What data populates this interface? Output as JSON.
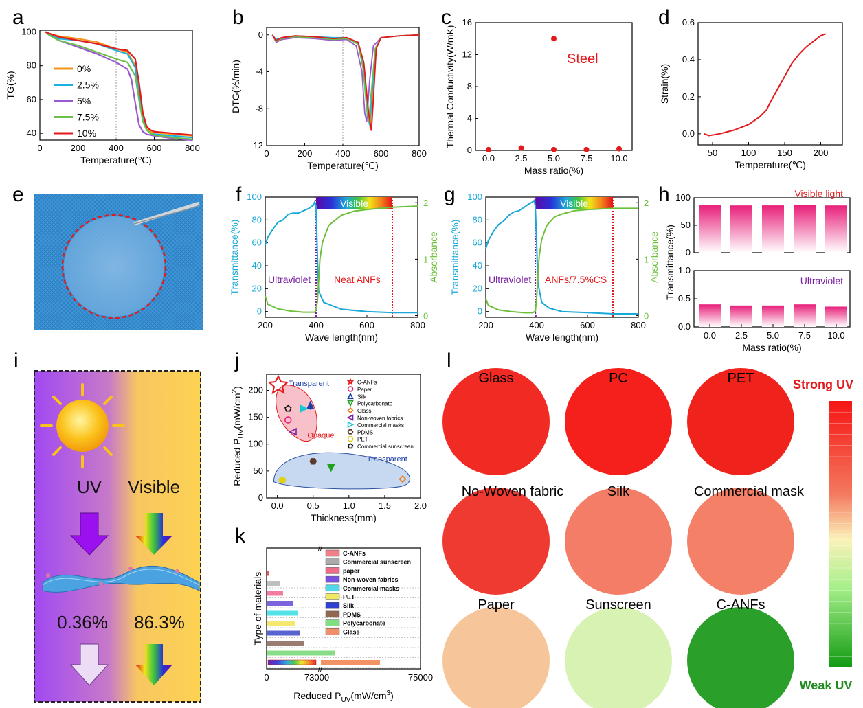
{
  "panel_labels": {
    "a": "a",
    "b": "b",
    "c": "c",
    "d": "d",
    "e": "e",
    "f": "f",
    "g": "g",
    "h": "h",
    "i": "i",
    "j": "j",
    "k": "k",
    "l": "l"
  },
  "colors": {
    "c0": "#f7941d",
    "c1": "#19b2e0",
    "c2": "#9b59d0",
    "c3": "#6cc04a",
    "c4": "#e31a1c",
    "red": "#e31a1c",
    "blue": "#19a8d8",
    "green": "#6dbf3a",
    "purple": "#7b1fa2",
    "pink": "#e8207a"
  },
  "chart_data": [
    {
      "id": "a",
      "type": "line",
      "title": "",
      "xlabel": "Temperature(℃)",
      "ylabel": "TG(%)",
      "xlim": [
        0,
        800
      ],
      "ylim": [
        36,
        101
      ],
      "xticks": [
        0,
        200,
        400,
        600,
        800
      ],
      "yticks": [
        40,
        60,
        80,
        100
      ],
      "legend": [
        "0%",
        "2.5%",
        "5%",
        "7.5%",
        "10%"
      ],
      "series": [
        {
          "name": "0%",
          "x": [
            30,
            50,
            100,
            200,
            300,
            400,
            460,
            500,
            520,
            540,
            560,
            580,
            600,
            700,
            800
          ],
          "y": [
            100,
            99,
            97.5,
            96,
            94,
            90,
            88,
            80,
            65,
            50,
            43,
            41,
            40.5,
            39.5,
            38.5
          ]
        },
        {
          "name": "2.5%",
          "x": [
            30,
            50,
            100,
            200,
            300,
            400,
            460,
            500,
            520,
            540,
            560,
            580,
            600,
            700,
            800
          ],
          "y": [
            100,
            99,
            96,
            95,
            93,
            89,
            87,
            79,
            63,
            48,
            42,
            40,
            39.5,
            38.5,
            37.5
          ]
        },
        {
          "name": "5%",
          "x": [
            30,
            50,
            100,
            200,
            300,
            400,
            460,
            480,
            500,
            520,
            540,
            560,
            600,
            700,
            800
          ],
          "y": [
            100,
            98,
            95,
            91,
            87,
            82,
            78,
            72,
            58,
            45,
            41,
            39.5,
            38.5,
            37,
            36
          ]
        },
        {
          "name": "7.5%",
          "x": [
            30,
            50,
            100,
            200,
            300,
            400,
            460,
            500,
            520,
            540,
            560,
            580,
            600,
            700,
            800
          ],
          "y": [
            100,
            98,
            95,
            92,
            88,
            84,
            82,
            74,
            60,
            47,
            42,
            40,
            39,
            37.5,
            36.5
          ]
        },
        {
          "name": "10%",
          "x": [
            30,
            50,
            100,
            200,
            300,
            400,
            460,
            500,
            520,
            540,
            560,
            580,
            600,
            700,
            800
          ],
          "y": [
            100,
            99,
            97,
            95,
            93,
            90,
            89,
            84,
            70,
            52,
            44,
            42,
            41,
            40,
            39
          ]
        }
      ]
    },
    {
      "id": "b",
      "type": "line",
      "title": "",
      "xlabel": "Temperature(℃)",
      "ylabel": "DTG(%/min)",
      "xlim": [
        0,
        800
      ],
      "ylim": [
        -12,
        0.8
      ],
      "xticks": [
        0,
        200,
        400,
        600,
        800
      ],
      "yticks": [
        0,
        -4,
        -8,
        -12
      ],
      "series": [
        {
          "name": "0%",
          "x": [
            30,
            50,
            80,
            150,
            250,
            350,
            420,
            480,
            510,
            530,
            545,
            555,
            570,
            600,
            700,
            800
          ],
          "y": [
            0,
            -0.6,
            -0.3,
            -0.1,
            -0.2,
            -0.4,
            -0.3,
            -0.8,
            -3,
            -8,
            -10.3,
            -7,
            -1.5,
            -0.3,
            -0.1,
            0
          ]
        },
        {
          "name": "2.5%",
          "x": [
            30,
            50,
            80,
            150,
            250,
            350,
            420,
            480,
            510,
            530,
            540,
            555,
            570,
            600,
            700,
            800
          ],
          "y": [
            0,
            -0.5,
            -0.3,
            -0.1,
            -0.2,
            -0.3,
            -0.3,
            -0.9,
            -3.5,
            -8.5,
            -9.8,
            -6,
            -1.5,
            -0.3,
            -0.1,
            0
          ]
        },
        {
          "name": "5%",
          "x": [
            30,
            50,
            80,
            150,
            250,
            350,
            420,
            470,
            500,
            515,
            525,
            540,
            560,
            600,
            700,
            800
          ],
          "y": [
            0,
            -0.8,
            -0.5,
            -0.3,
            -0.4,
            -0.6,
            -0.5,
            -1.2,
            -4,
            -8.5,
            -9.4,
            -5,
            -1.2,
            -0.3,
            -0.1,
            0
          ]
        },
        {
          "name": "7.5%",
          "x": [
            30,
            50,
            80,
            150,
            250,
            350,
            420,
            480,
            505,
            525,
            535,
            550,
            570,
            600,
            700,
            800
          ],
          "y": [
            0,
            -0.7,
            -0.4,
            -0.2,
            -0.3,
            -0.5,
            -0.4,
            -1,
            -3.5,
            -8,
            -9.5,
            -6,
            -1.5,
            -0.3,
            -0.1,
            0
          ]
        },
        {
          "name": "10%",
          "x": [
            30,
            50,
            80,
            150,
            250,
            350,
            420,
            480,
            510,
            535,
            550,
            560,
            575,
            600,
            700,
            800
          ],
          "y": [
            0,
            -0.6,
            -0.3,
            -0.1,
            -0.2,
            -0.4,
            -0.3,
            -0.8,
            -3,
            -8.5,
            -10.4,
            -7,
            -1.5,
            -0.3,
            -0.1,
            0
          ]
        }
      ]
    },
    {
      "id": "c",
      "type": "scatter",
      "title": "",
      "xlabel": "Mass ratio(%)",
      "ylabel": "Thermal Conductivity(W/mK)",
      "xlim": [
        -1,
        11
      ],
      "ylim": [
        0,
        16
      ],
      "xticks": [
        0.0,
        2.5,
        5.0,
        7.5,
        10.0
      ],
      "yticks": [
        0,
        4,
        8,
        12,
        16
      ],
      "x": [
        0,
        2.5,
        5,
        7.5,
        10,
        5
      ],
      "y": [
        0.1,
        0.3,
        0.1,
        0.1,
        0.2,
        14
      ],
      "annotation": "Steel"
    },
    {
      "id": "d",
      "type": "line",
      "title": "",
      "xlabel": "Temperature(℃)",
      "ylabel": "Strain(%)",
      "xlim": [
        30,
        230
      ],
      "ylim": [
        -0.06,
        0.6
      ],
      "xticks": [
        50,
        100,
        150,
        200
      ],
      "yticks": [
        0.0,
        0.2,
        0.4,
        0.6
      ],
      "series": [
        {
          "name": "strain",
          "x": [
            38,
            45,
            60,
            80,
            100,
            115,
            125,
            130,
            140,
            150,
            160,
            170,
            180,
            190,
            200,
            207
          ],
          "y": [
            0,
            -0.01,
            0,
            0.02,
            0.05,
            0.09,
            0.13,
            0.17,
            0.24,
            0.31,
            0.38,
            0.43,
            0.47,
            0.5,
            0.53,
            0.54
          ]
        }
      ]
    },
    {
      "id": "f",
      "type": "line",
      "title": "",
      "xlabel": "Wave length(nm)",
      "ylabel": "Transmittance(%)",
      "y2label": "Absorbance",
      "xlim": [
        200,
        800
      ],
      "ylim": [
        -5,
        100
      ],
      "y2lim": [
        -0.03,
        2.1
      ],
      "xticks": [
        200,
        400,
        600,
        800
      ],
      "yticks": [
        0,
        20,
        40,
        60,
        80,
        100
      ],
      "y2ticks": [
        0,
        1,
        2
      ],
      "band_label": "Visible",
      "uv_label": "Ultraviolet",
      "sample_label": "Neat ANFs",
      "series": [
        {
          "name": "Transmittance",
          "x": [
            200,
            210,
            230,
            250,
            270,
            290,
            310,
            330,
            350,
            370,
            390,
            395,
            400,
            405,
            410,
            430,
            500,
            600,
            700,
            800
          ],
          "y": [
            58,
            65,
            72,
            78,
            80,
            85,
            86,
            86,
            88,
            90,
            93,
            96,
            92,
            50,
            18,
            8,
            2,
            0,
            -1,
            -1
          ]
        },
        {
          "name": "Absorbance",
          "x": [
            200,
            210,
            250,
            300,
            350,
            395,
            400,
            405,
            410,
            415,
            425,
            450,
            500,
            550,
            600,
            700,
            800
          ],
          "y": [
            0.35,
            0.2,
            0.12,
            0.08,
            0.06,
            0.06,
            0.1,
            0.25,
            0.6,
            1.0,
            1.3,
            1.6,
            1.78,
            1.85,
            1.88,
            1.92,
            1.94
          ]
        }
      ]
    },
    {
      "id": "g",
      "type": "line",
      "title": "",
      "xlabel": "Wave length(nm)",
      "ylabel": "Transmittance(%)",
      "y2label": "Absorbance",
      "xlim": [
        200,
        800
      ],
      "ylim": [
        -5,
        100
      ],
      "y2lim": [
        -0.03,
        2.1
      ],
      "xticks": [
        200,
        400,
        600,
        800
      ],
      "yticks": [
        0,
        20,
        40,
        60,
        80,
        100
      ],
      "y2ticks": [
        0,
        1,
        2
      ],
      "band_label": "Visible",
      "uv_label": "Ultraviolet",
      "sample_label": "ANFs/7.5%CS",
      "series": [
        {
          "name": "Transmittance",
          "x": [
            200,
            210,
            230,
            250,
            270,
            290,
            310,
            330,
            350,
            370,
            385,
            390,
            395,
            400,
            405,
            420,
            450,
            500,
            600,
            700,
            800
          ],
          "y": [
            55,
            62,
            70,
            76,
            79,
            84,
            87,
            88,
            91,
            94,
            96,
            97,
            92,
            60,
            25,
            8,
            3,
            0,
            -1,
            -2,
            -2
          ]
        },
        {
          "name": "Absorbance",
          "x": [
            200,
            210,
            250,
            300,
            350,
            385,
            395,
            400,
            405,
            410,
            420,
            440,
            470,
            500,
            550,
            600,
            700,
            800
          ],
          "y": [
            0.3,
            0.18,
            0.1,
            0.07,
            0.05,
            0.05,
            0.08,
            0.3,
            0.7,
            1.05,
            1.35,
            1.6,
            1.75,
            1.8,
            1.86,
            1.88,
            1.9,
            1.9
          ]
        }
      ]
    },
    {
      "id": "h",
      "type": "bar",
      "title": "",
      "xlabel": "Mass ratio(%)",
      "ylabel": "Transmittance(%)",
      "categories": [
        "0.0",
        "2.5",
        "5.0",
        "7.5",
        "10.0"
      ],
      "series": [
        {
          "name": "Visible light",
          "values": [
            86.2,
            86.0,
            86.1,
            86.3,
            86.0
          ],
          "ylim": [
            0,
            100
          ],
          "yticks": [
            0,
            50,
            100
          ]
        },
        {
          "name": "Ultraviolet",
          "values": [
            0.4,
            0.38,
            0.38,
            0.4,
            0.36
          ],
          "ylim": [
            0,
            1.0
          ],
          "yticks": [
            0.0,
            0.5,
            1.0
          ]
        }
      ]
    },
    {
      "id": "j",
      "type": "scatter",
      "title": "",
      "xlabel": "Thickness(mm)",
      "ylabel": "Reduced P",
      "ylabel_sub": "UV",
      "ylabel_tail": "(mW/cm",
      "ylabel_sup": "2",
      "ylabel_end": ")",
      "xlim": [
        -0.15,
        2.0
      ],
      "ylim": [
        0,
        230
      ],
      "xticks": [
        0.0,
        0.5,
        1.0,
        1.5,
        2.0
      ],
      "yticks": [
        0,
        50,
        100,
        150,
        200
      ],
      "star_label": "Transparent",
      "region_opaque": "Opaque",
      "region_transparent": "Transparent",
      "legend": [
        "C-ANFs",
        "Paper",
        "Silk",
        "Polycarbonate",
        "Glass",
        "Non-woven fabrics",
        "Commercial masks",
        "PDMS",
        "PET",
        "Commercial sunscreen"
      ],
      "points": [
        {
          "name": "Paper",
          "x": 0.15,
          "y": 145
        },
        {
          "name": "Silk",
          "x": 0.46,
          "y": 172
        },
        {
          "name": "Commercial masks",
          "x": 0.37,
          "y": 166
        },
        {
          "name": "Non-woven fabrics",
          "x": 0.22,
          "y": 123
        },
        {
          "name": "Commercial sunscreen",
          "x": 0.15,
          "y": 166
        },
        {
          "name": "PDMS",
          "x": 0.5,
          "y": 68
        },
        {
          "name": "Polycarbonate",
          "x": 0.75,
          "y": 56
        },
        {
          "name": "Glass",
          "x": 1.75,
          "y": 35
        },
        {
          "name": "PET",
          "x": 0.07,
          "y": 33
        }
      ]
    },
    {
      "id": "k",
      "type": "bar",
      "orientation": "horizontal",
      "title": "",
      "xlabel": "Reduced P",
      "xlabel_sub": "UV",
      "xlabel_tail": "(mW/cm",
      "xlabel_sup": "3",
      "xlabel_end": ")",
      "ylabel": "Type of materials",
      "xticks": [
        "0",
        "73000",
        "75000"
      ],
      "categories": [
        "C-ANFs",
        "Commercial sunscreen",
        "paper",
        "Non-woven fabrics",
        "Commercial masks",
        "PET",
        "Silk",
        "PDMS",
        "Polycarbonate",
        "Glass"
      ],
      "values": [
        150,
        1800,
        2300,
        3700,
        4400,
        4100,
        4700,
        5300,
        9800,
        74000
      ]
    },
    {
      "id": "l",
      "type": "heatmap",
      "title": "",
      "samples": [
        "Glass",
        "PC",
        "PET",
        "No-Woven fabric",
        "Silk",
        "Commercial mask",
        "Paper",
        "Sunscreen",
        "C-ANFs"
      ],
      "scale_max_label": "Strong UV",
      "scale_min_label": "Weak UV"
    }
  ],
  "panel_i": {
    "uv_label": "UV",
    "visible_label": "Visible",
    "uv_value": "0.36%",
    "visible_value": "86.3%"
  }
}
